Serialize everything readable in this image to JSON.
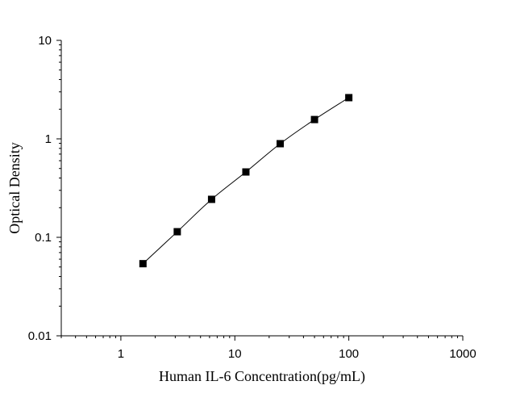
{
  "chart_data": {
    "type": "scatter",
    "title": "",
    "xlabel": "Human IL-6 Concentration(pg/mL)",
    "ylabel": "Optical Density",
    "x_scale": "log",
    "y_scale": "log",
    "xlim": [
      0.3,
      1000
    ],
    "ylim": [
      0.01,
      10
    ],
    "x_ticks": [
      "1",
      "10",
      "100",
      "1000"
    ],
    "x_tick_values": [
      1,
      10,
      100,
      1000
    ],
    "y_ticks": [
      "0.01",
      "0.1",
      "1",
      "10"
    ],
    "y_tick_values": [
      0.01,
      0.1,
      1,
      10
    ],
    "grid": false,
    "fit_line": true,
    "marker": "square",
    "color": "#000000",
    "series": [
      {
        "x": [
          1.5625,
          3.125,
          6.25,
          12.5,
          25,
          50,
          100
        ],
        "y": [
          0.054,
          0.114,
          0.243,
          0.461,
          0.893,
          1.57,
          2.62
        ]
      }
    ]
  }
}
